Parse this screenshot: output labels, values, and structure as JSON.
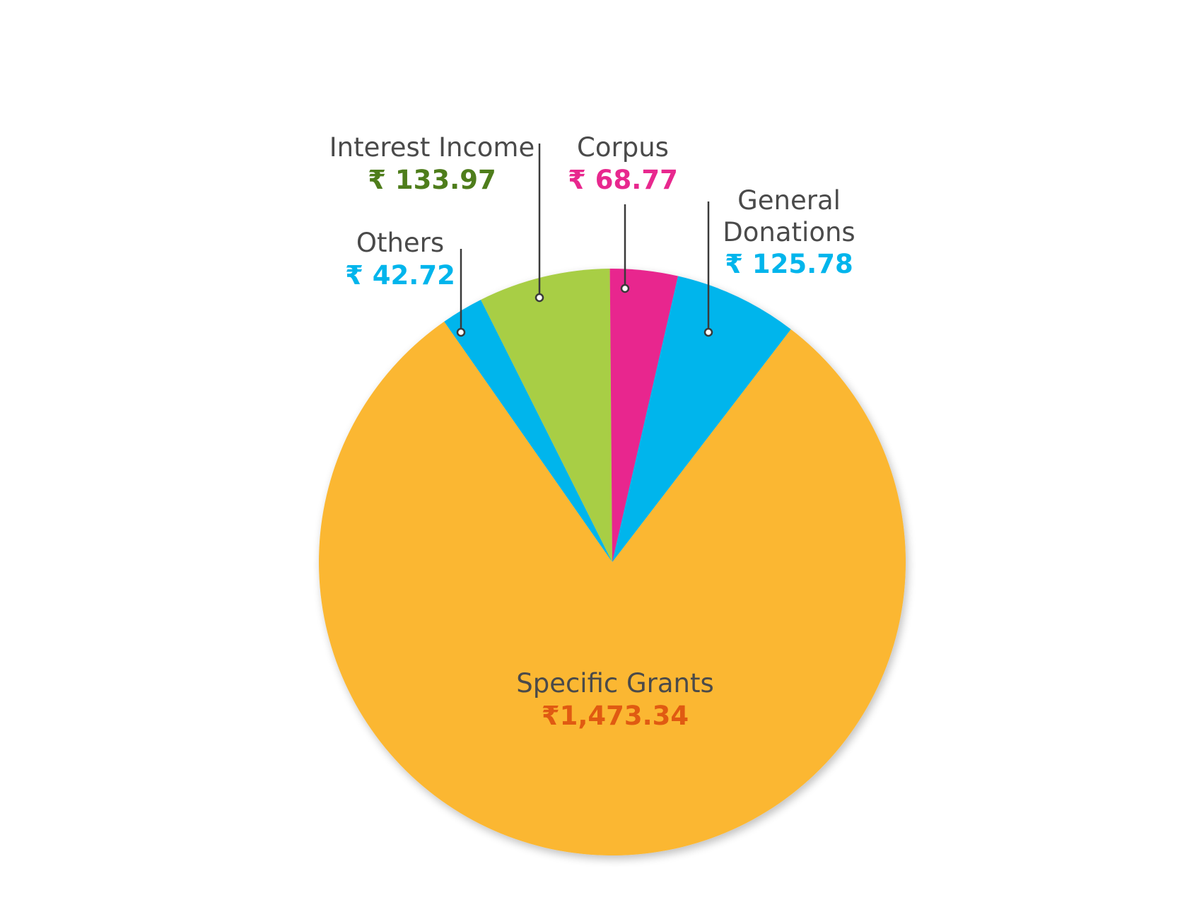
{
  "chart_data": {
    "type": "pie",
    "slices": [
      {
        "label": "Specific Grants",
        "value": 1473.34,
        "display": "₹1,473.34",
        "color": "#FBB731",
        "value_color": "#E05A12"
      },
      {
        "label": "Others",
        "value": 42.72,
        "display": "₹ 42.72",
        "color": "#00B5EC",
        "value_color": "#00B5EC"
      },
      {
        "label": "Interest Income",
        "value": 133.97,
        "display": "₹ 133.97",
        "color": "#A8CE45",
        "value_color": "#4E7D1B"
      },
      {
        "label": "Corpus",
        "value": 68.77,
        "display": "₹ 68.77",
        "color": "#E8288E",
        "value_color": "#E8288E"
      },
      {
        "label": "General Donations",
        "value": 125.78,
        "display": "₹ 125.78",
        "color": "#00B5EC",
        "value_color": "#00B5EC"
      }
    ]
  }
}
